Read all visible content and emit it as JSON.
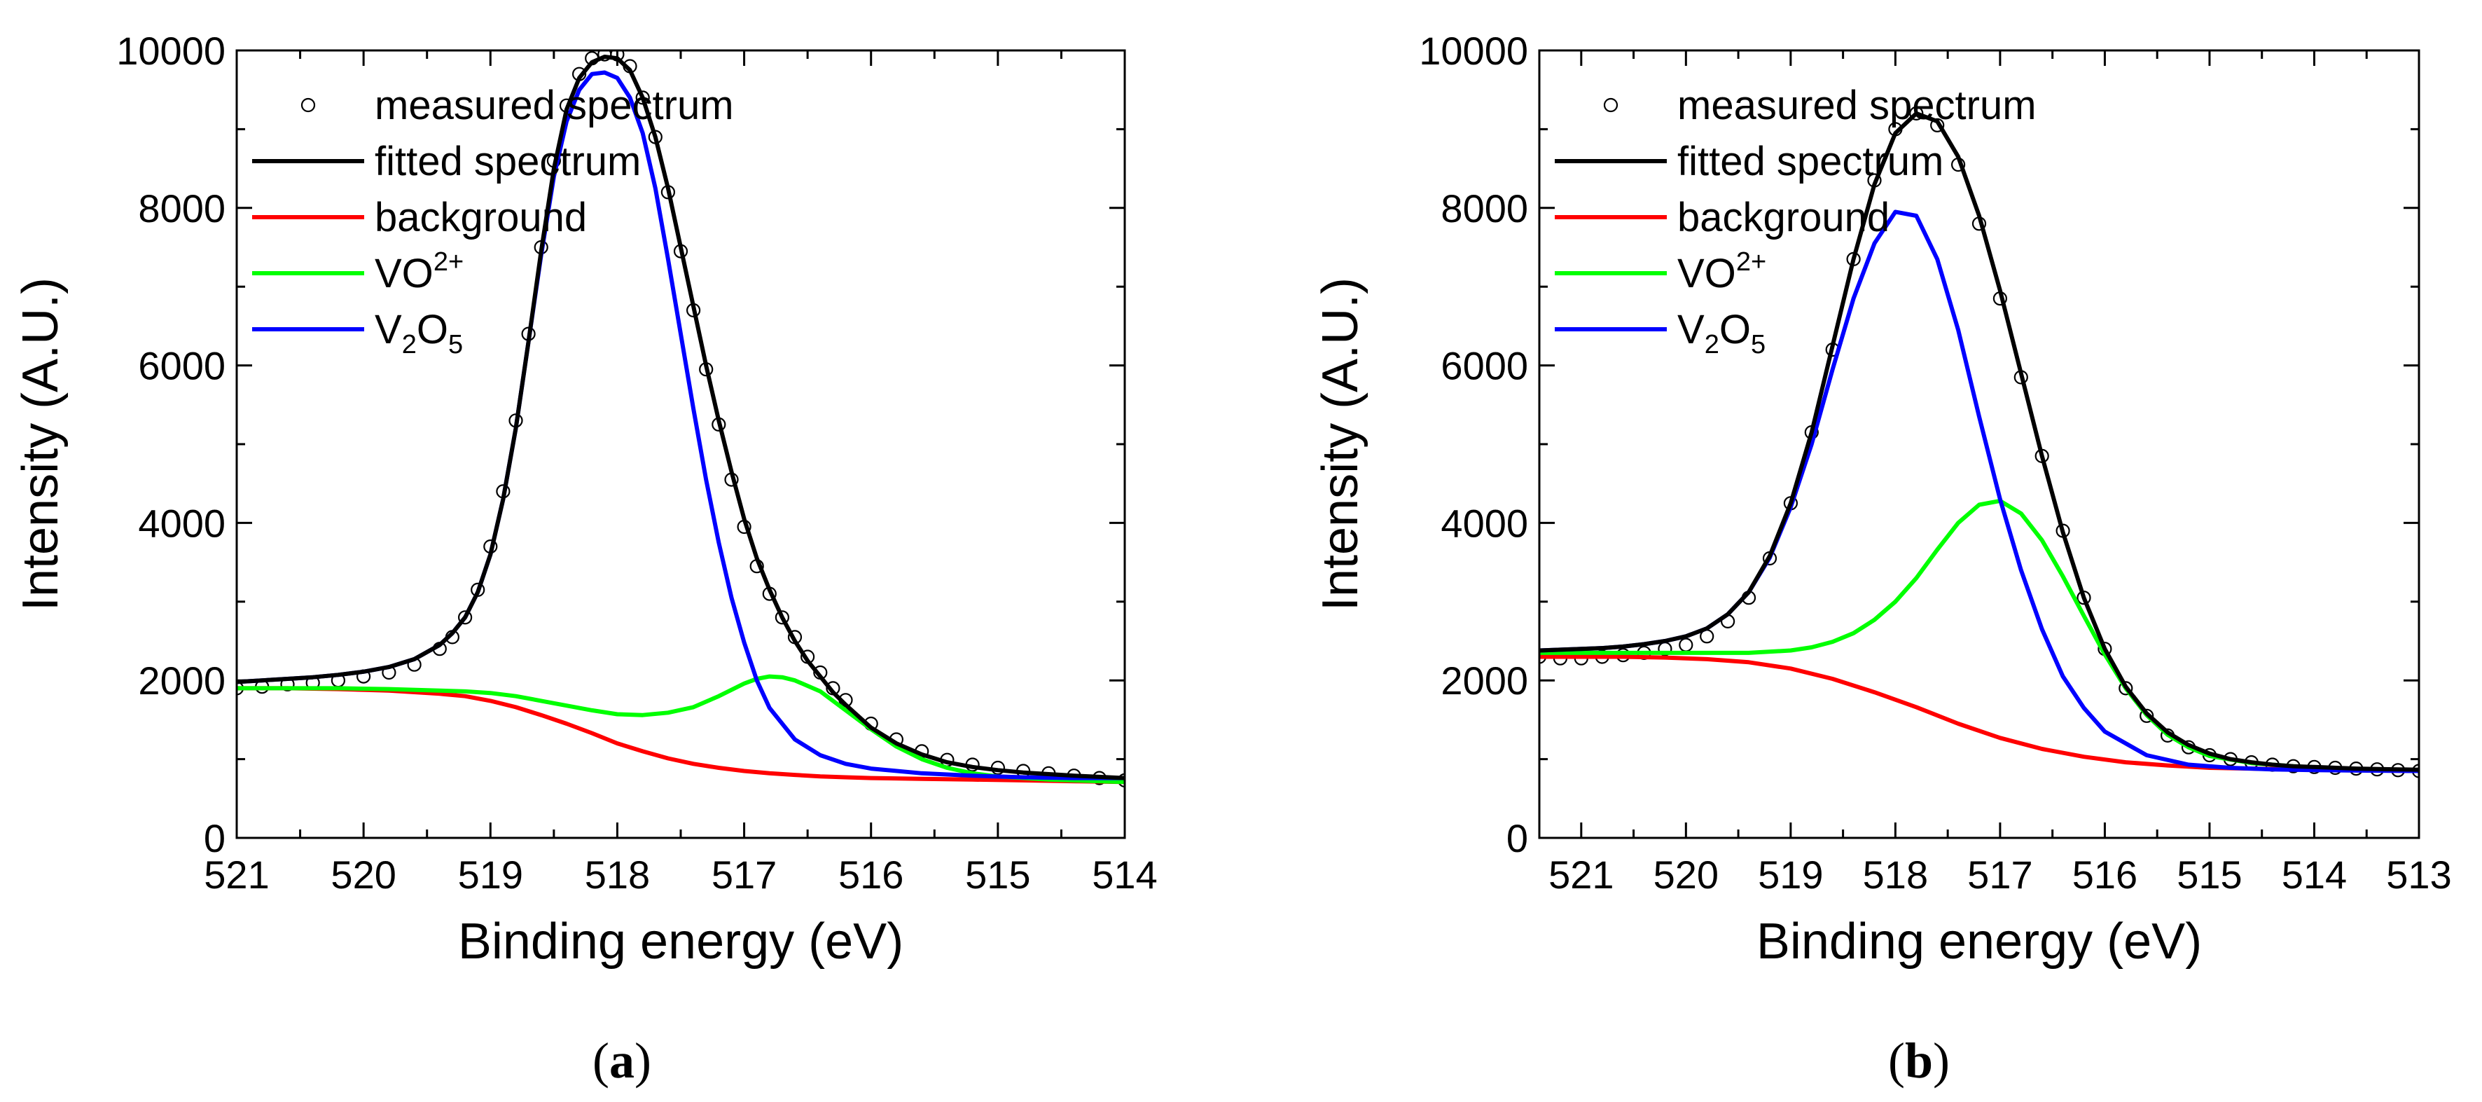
{
  "chart_data": [
    {
      "type": "line",
      "panel_label": "a",
      "xlabel": "Binding energy (eV)",
      "ylabel": "Intensity (A.U.)",
      "xlim": [
        521,
        514
      ],
      "ylim": [
        0,
        10000
      ],
      "xticks": [
        521,
        520,
        519,
        518,
        517,
        516,
        515,
        514
      ],
      "yticks": [
        0,
        2000,
        4000,
        6000,
        8000,
        10000
      ],
      "legend": [
        {
          "key": "measured",
          "text": "measured spectrum",
          "style": "marker"
        },
        {
          "key": "fitted",
          "text": "fitted spectrum",
          "style": "line"
        },
        {
          "key": "background",
          "text": "background",
          "style": "line"
        },
        {
          "key": "vo2",
          "text": "VO",
          "sup": "2+",
          "style": "line"
        },
        {
          "key": "v2o5",
          "text": "V",
          "sub1": "2",
          "mid": "O",
          "sub2": "5",
          "style": "line"
        }
      ],
      "colors": {
        "measured": "#000000",
        "fitted": "#000000",
        "background": "#ff0000",
        "vo2": "#00ff00",
        "v2o5": "#0000ff"
      },
      "series": [
        {
          "name": "measured spectrum",
          "key": "measured",
          "x": [
            521.0,
            520.8,
            520.6,
            520.4,
            520.2,
            520.0,
            519.8,
            519.6,
            519.4,
            519.3,
            519.2,
            519.1,
            519.0,
            518.9,
            518.8,
            518.7,
            518.6,
            518.5,
            518.4,
            518.3,
            518.2,
            518.1,
            518.0,
            517.9,
            517.8,
            517.7,
            517.6,
            517.5,
            517.4,
            517.3,
            517.2,
            517.1,
            517.0,
            516.9,
            516.8,
            516.7,
            516.6,
            516.5,
            516.4,
            516.3,
            516.2,
            516.0,
            515.8,
            515.6,
            515.4,
            515.2,
            515.0,
            514.8,
            514.6,
            514.4,
            514.2,
            514.0
          ],
          "y": [
            1900,
            1920,
            1950,
            1970,
            2000,
            2050,
            2100,
            2200,
            2400,
            2550,
            2800,
            3150,
            3700,
            4400,
            5300,
            6400,
            7500,
            8600,
            9300,
            9700,
            9900,
            9950,
            9950,
            9800,
            9400,
            8900,
            8200,
            7450,
            6700,
            5950,
            5250,
            4550,
            3950,
            3450,
            3100,
            2800,
            2550,
            2300,
            2100,
            1900,
            1750,
            1450,
            1250,
            1100,
            990,
            930,
            890,
            850,
            820,
            790,
            760,
            730
          ]
        },
        {
          "name": "fitted spectrum",
          "key": "fitted",
          "x": [
            521.0,
            520.8,
            520.6,
            520.4,
            520.2,
            520.0,
            519.8,
            519.6,
            519.4,
            519.3,
            519.2,
            519.1,
            519.0,
            518.9,
            518.8,
            518.7,
            518.6,
            518.5,
            518.4,
            518.3,
            518.2,
            518.1,
            518.0,
            517.9,
            517.8,
            517.7,
            517.6,
            517.5,
            517.4,
            517.3,
            517.2,
            517.1,
            517.0,
            516.9,
            516.8,
            516.7,
            516.6,
            516.5,
            516.4,
            516.3,
            516.2,
            516.0,
            515.8,
            515.6,
            515.4,
            515.2,
            515.0,
            514.8,
            514.6,
            514.4,
            514.2,
            514.0
          ],
          "y": [
            1980,
            2000,
            2020,
            2040,
            2070,
            2110,
            2170,
            2270,
            2450,
            2600,
            2800,
            3120,
            3600,
            4300,
            5200,
            6300,
            7450,
            8500,
            9250,
            9650,
            9850,
            9920,
            9900,
            9750,
            9400,
            8900,
            8250,
            7500,
            6750,
            6000,
            5300,
            4650,
            4050,
            3550,
            3150,
            2800,
            2500,
            2250,
            2050,
            1850,
            1690,
            1400,
            1200,
            1060,
            960,
            900,
            860,
            830,
            810,
            790,
            775,
            760
          ]
        },
        {
          "name": "background",
          "key": "background",
          "x": [
            521.0,
            520.6,
            520.2,
            519.8,
            519.4,
            519.2,
            519.0,
            518.8,
            518.6,
            518.4,
            518.2,
            518.0,
            517.8,
            517.6,
            517.4,
            517.2,
            517.0,
            516.8,
            516.6,
            516.4,
            516.2,
            516.0,
            515.6,
            515.2,
            514.8,
            514.4,
            514.0
          ],
          "y": [
            1900,
            1900,
            1890,
            1870,
            1830,
            1800,
            1740,
            1660,
            1560,
            1450,
            1330,
            1200,
            1100,
            1010,
            940,
            890,
            850,
            820,
            800,
            780,
            770,
            760,
            750,
            740,
            730,
            720,
            710
          ]
        },
        {
          "name": "VO2+",
          "key": "vo2",
          "x": [
            521.0,
            520.6,
            520.2,
            519.8,
            519.4,
            519.2,
            519.0,
            518.8,
            518.6,
            518.4,
            518.2,
            518.0,
            517.8,
            517.6,
            517.4,
            517.2,
            517.0,
            516.9,
            516.8,
            516.7,
            516.6,
            516.4,
            516.2,
            516.0,
            515.8,
            515.6,
            515.4,
            515.2,
            515.0,
            514.6,
            514.2,
            514.0
          ],
          "y": [
            1900,
            1900,
            1900,
            1890,
            1870,
            1860,
            1840,
            1800,
            1740,
            1680,
            1620,
            1570,
            1560,
            1590,
            1660,
            1800,
            1960,
            2020,
            2050,
            2040,
            2000,
            1860,
            1620,
            1380,
            1160,
            1000,
            890,
            820,
            780,
            740,
            720,
            710
          ]
        },
        {
          "name": "V2O5",
          "key": "v2o5",
          "x": [
            521.0,
            520.8,
            520.6,
            520.4,
            520.2,
            520.0,
            519.8,
            519.6,
            519.4,
            519.3,
            519.2,
            519.1,
            519.0,
            518.9,
            518.8,
            518.7,
            518.6,
            518.5,
            518.4,
            518.3,
            518.2,
            518.1,
            518.0,
            517.9,
            517.8,
            517.7,
            517.6,
            517.5,
            517.4,
            517.3,
            517.2,
            517.1,
            517.0,
            516.9,
            516.8,
            516.6,
            516.4,
            516.2,
            516.0,
            515.6,
            515.2,
            514.8,
            514.4,
            514.0
          ],
          "y": [
            1980,
            2000,
            2020,
            2040,
            2070,
            2110,
            2170,
            2270,
            2450,
            2600,
            2800,
            3120,
            3600,
            4300,
            5200,
            6300,
            7400,
            8400,
            9100,
            9500,
            9700,
            9720,
            9650,
            9400,
            8950,
            8250,
            7350,
            6400,
            5450,
            4550,
            3750,
            3050,
            2480,
            2000,
            1650,
            1250,
            1050,
            940,
            880,
            820,
            790,
            770,
            760,
            760
          ]
        }
      ]
    },
    {
      "type": "line",
      "panel_label": "b",
      "xlabel": "Binding energy (eV)",
      "ylabel": "Intensity (A.U.)",
      "xlim": [
        521.4,
        513
      ],
      "ylim": [
        0,
        10000
      ],
      "xticks": [
        521,
        520,
        519,
        518,
        517,
        516,
        515,
        514,
        513
      ],
      "yticks": [
        0,
        2000,
        4000,
        6000,
        8000,
        10000
      ],
      "legend": [
        {
          "key": "measured",
          "text": "measured spectrum",
          "style": "marker"
        },
        {
          "key": "fitted",
          "text": "fitted spectrum",
          "style": "line"
        },
        {
          "key": "background",
          "text": "background",
          "style": "line"
        },
        {
          "key": "vo2",
          "text": "VO",
          "sup": "2+",
          "style": "line"
        },
        {
          "key": "v2o5",
          "text": "V",
          "sub1": "2",
          "mid": "O",
          "sub2": "5",
          "style": "line"
        }
      ],
      "colors": {
        "measured": "#000000",
        "fitted": "#000000",
        "background": "#ff0000",
        "vo2": "#00ff00",
        "v2o5": "#0000ff"
      },
      "series": [
        {
          "name": "measured spectrum",
          "key": "measured",
          "x": [
            521.4,
            521.2,
            521.0,
            520.8,
            520.6,
            520.4,
            520.2,
            520.0,
            519.8,
            519.6,
            519.4,
            519.2,
            519.0,
            518.8,
            518.6,
            518.4,
            518.2,
            518.0,
            517.8,
            517.6,
            517.4,
            517.2,
            517.0,
            516.8,
            516.6,
            516.4,
            516.2,
            516.0,
            515.8,
            515.6,
            515.4,
            515.2,
            515.0,
            514.8,
            514.6,
            514.4,
            514.2,
            514.0,
            513.8,
            513.6,
            513.4,
            513.2,
            513.0
          ],
          "y": [
            2300,
            2280,
            2280,
            2300,
            2320,
            2350,
            2400,
            2450,
            2560,
            2750,
            3050,
            3550,
            4250,
            5150,
            6200,
            7350,
            8350,
            9000,
            9200,
            9050,
            8550,
            7800,
            6850,
            5850,
            4850,
            3900,
            3050,
            2400,
            1900,
            1550,
            1300,
            1150,
            1050,
            1000,
            960,
            930,
            910,
            900,
            890,
            880,
            870,
            860,
            850
          ]
        },
        {
          "name": "fitted spectrum",
          "key": "fitted",
          "x": [
            521.4,
            521.2,
            521.0,
            520.8,
            520.6,
            520.4,
            520.2,
            520.0,
            519.8,
            519.6,
            519.4,
            519.2,
            519.0,
            518.8,
            518.6,
            518.4,
            518.2,
            518.0,
            517.8,
            517.6,
            517.4,
            517.2,
            517.0,
            516.8,
            516.6,
            516.4,
            516.2,
            516.0,
            515.8,
            515.6,
            515.4,
            515.2,
            515.0,
            514.8,
            514.6,
            514.4,
            514.2,
            514.0,
            513.6,
            513.2,
            513.0
          ],
          "y": [
            2380,
            2390,
            2400,
            2410,
            2430,
            2460,
            2500,
            2560,
            2660,
            2840,
            3120,
            3580,
            4250,
            5150,
            6250,
            7350,
            8300,
            8950,
            9200,
            9100,
            8650,
            7900,
            6950,
            5900,
            4850,
            3880,
            3050,
            2400,
            1920,
            1580,
            1340,
            1180,
            1070,
            1000,
            960,
            930,
            910,
            900,
            880,
            870,
            865
          ]
        },
        {
          "name": "background",
          "key": "background",
          "x": [
            521.4,
            521.0,
            520.6,
            520.2,
            519.8,
            519.4,
            519.0,
            518.6,
            518.2,
            517.8,
            517.4,
            517.0,
            516.6,
            516.2,
            515.8,
            515.4,
            515.0,
            514.6,
            514.2,
            513.8,
            513.4,
            513.0
          ],
          "y": [
            2300,
            2300,
            2300,
            2290,
            2270,
            2230,
            2150,
            2020,
            1850,
            1660,
            1450,
            1270,
            1130,
            1030,
            960,
            920,
            890,
            880,
            870,
            860,
            855,
            850
          ]
        },
        {
          "name": "VO2+",
          "key": "vo2",
          "x": [
            521.4,
            521.0,
            520.6,
            520.2,
            519.8,
            519.4,
            519.0,
            518.8,
            518.6,
            518.4,
            518.2,
            518.0,
            517.8,
            517.6,
            517.4,
            517.2,
            517.0,
            516.8,
            516.6,
            516.4,
            516.2,
            516.0,
            515.8,
            515.6,
            515.4,
            515.2,
            515.0,
            514.6,
            514.2,
            513.8,
            513.4,
            513.0
          ],
          "y": [
            2350,
            2350,
            2350,
            2350,
            2350,
            2350,
            2380,
            2420,
            2490,
            2600,
            2770,
            3000,
            3300,
            3660,
            4000,
            4230,
            4280,
            4120,
            3780,
            3320,
            2820,
            2330,
            1900,
            1560,
            1310,
            1150,
            1040,
            950,
            910,
            880,
            860,
            850
          ]
        },
        {
          "name": "V2O5",
          "key": "v2o5",
          "x": [
            521.4,
            521.2,
            521.0,
            520.8,
            520.6,
            520.4,
            520.2,
            520.0,
            519.8,
            519.6,
            519.4,
            519.2,
            519.0,
            518.8,
            518.6,
            518.4,
            518.2,
            518.0,
            517.8,
            517.6,
            517.4,
            517.2,
            517.0,
            516.8,
            516.6,
            516.4,
            516.2,
            516.0,
            515.6,
            515.2,
            514.8,
            514.4,
            514.0,
            513.6,
            513.0
          ],
          "y": [
            2380,
            2390,
            2400,
            2410,
            2430,
            2460,
            2500,
            2560,
            2660,
            2840,
            3120,
            3560,
            4200,
            5000,
            5950,
            6850,
            7550,
            7950,
            7900,
            7350,
            6450,
            5350,
            4300,
            3400,
            2650,
            2050,
            1650,
            1350,
            1050,
            930,
            890,
            870,
            860,
            855,
            850
          ]
        }
      ]
    }
  ]
}
